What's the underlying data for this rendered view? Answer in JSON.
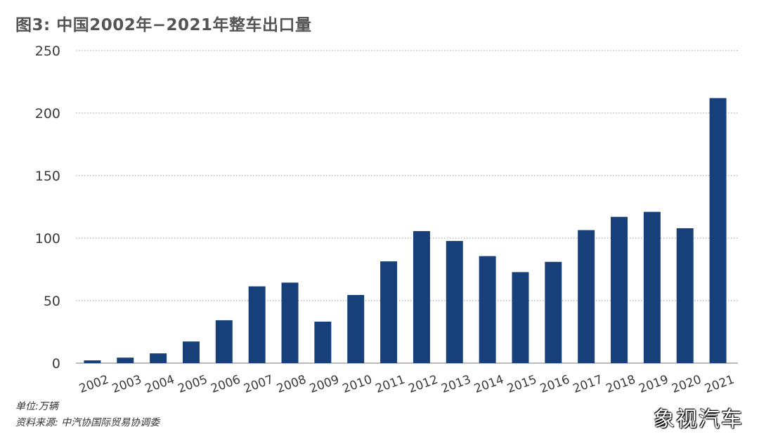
{
  "chart_data": {
    "type": "bar",
    "title": "图3: 中国2002年−2021年整车出口量",
    "categories": [
      "2002",
      "2003",
      "2004",
      "2005",
      "2006",
      "2007",
      "2008",
      "2009",
      "2010",
      "2011",
      "2012",
      "2013",
      "2014",
      "2015",
      "2016",
      "2017",
      "2018",
      "2019",
      "2020",
      "2021"
    ],
    "values": [
      2.2,
      4.4,
      7.8,
      17.3,
      34.3,
      61.4,
      64.4,
      33.2,
      54.5,
      81.4,
      105.6,
      97.7,
      85.6,
      72.8,
      81.0,
      106.4,
      117.0,
      121.0,
      107.9,
      212.0
    ],
    "ylim": [
      0,
      250
    ],
    "yticks": [
      0,
      50,
      100,
      150,
      200,
      250
    ],
    "grid": true,
    "bar_color": "#17407a"
  },
  "footnote": {
    "unit": "单位:万辆",
    "source": "资料来源: 中汽协国际贸易协调委"
  },
  "watermark": "象视汽车"
}
